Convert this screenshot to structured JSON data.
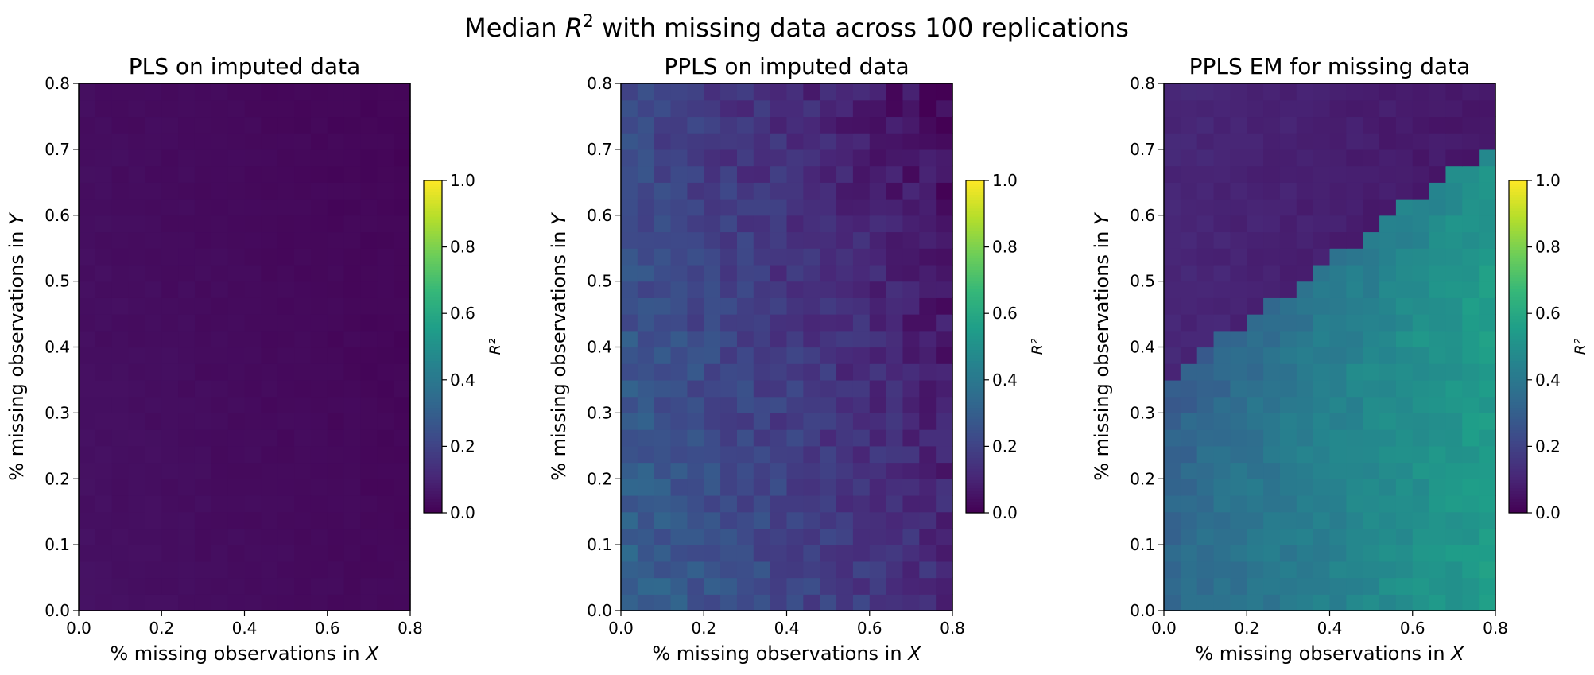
{
  "figure": {
    "title_prefix": "Median ",
    "title_var": "R",
    "title_sup": "2",
    "title_suffix": " with missing data across 100 replications"
  },
  "chart_data": [
    {
      "type": "heatmap",
      "title": "PLS on imputed data",
      "xlabel_prefix": "% missing observations in ",
      "xlabel_var": "X",
      "ylabel_prefix": "% missing observations in ",
      "ylabel_var": "Y",
      "xlim": [
        0,
        0.8
      ],
      "ylim": [
        0,
        0.8
      ],
      "xticks": [
        "0.0",
        "0.2",
        "0.4",
        "0.6",
        "0.8"
      ],
      "yticks": [
        "0.0",
        "0.1",
        "0.2",
        "0.3",
        "0.4",
        "0.5",
        "0.6",
        "0.7",
        "0.8"
      ],
      "grid_size": [
        20,
        32
      ],
      "colormap": "viridis",
      "clim": [
        0,
        1
      ],
      "colorbar_label": "R²",
      "colorbar_ticks": [
        "0.0",
        "0.2",
        "0.4",
        "0.6",
        "0.8",
        "1.0"
      ],
      "model": "pls_imputed",
      "value_range": [
        0.01,
        0.06
      ]
    },
    {
      "type": "heatmap",
      "title": "PPLS on imputed data",
      "xlabel_prefix": "% missing observations in ",
      "xlabel_var": "X",
      "ylabel_prefix": "% missing observations in ",
      "ylabel_var": "Y",
      "xlim": [
        0,
        0.8
      ],
      "ylim": [
        0,
        0.8
      ],
      "xticks": [
        "0.0",
        "0.2",
        "0.4",
        "0.6",
        "0.8"
      ],
      "yticks": [
        "0.0",
        "0.1",
        "0.2",
        "0.3",
        "0.4",
        "0.5",
        "0.6",
        "0.7",
        "0.8"
      ],
      "grid_size": [
        20,
        32
      ],
      "colormap": "viridis",
      "clim": [
        0,
        1
      ],
      "colorbar_label": "R²",
      "colorbar_ticks": [
        "0.0",
        "0.2",
        "0.4",
        "0.6",
        "0.8",
        "1.0"
      ],
      "model": "ppls_imputed",
      "value_range": [
        0.05,
        0.38
      ]
    },
    {
      "type": "heatmap",
      "title": "PPLS EM for missing data",
      "xlabel_prefix": "% missing observations in ",
      "xlabel_var": "X",
      "ylabel_prefix": "% missing observations in ",
      "ylabel_var": "Y",
      "xlim": [
        0,
        0.8
      ],
      "ylim": [
        0,
        0.8
      ],
      "xticks": [
        "0.0",
        "0.2",
        "0.4",
        "0.6",
        "0.8"
      ],
      "yticks": [
        "0.0",
        "0.1",
        "0.2",
        "0.3",
        "0.4",
        "0.5",
        "0.6",
        "0.7",
        "0.8"
      ],
      "grid_size": [
        20,
        32
      ],
      "colormap": "viridis",
      "clim": [
        0,
        1
      ],
      "colorbar_label": "R²",
      "colorbar_ticks": [
        "0.0",
        "0.2",
        "0.4",
        "0.6",
        "0.8",
        "1.0"
      ],
      "model": "ppls_em",
      "value_range": [
        0.02,
        0.6
      ]
    }
  ]
}
